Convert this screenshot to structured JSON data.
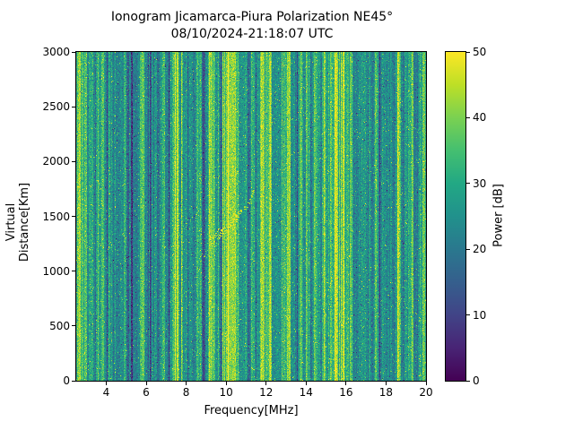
{
  "figure": {
    "title_line1": "Ionogram Jicamarca-Piura Polarization NE45°",
    "title_line2": "08/10/2024-21:18:07 UTC",
    "background": "#ffffff",
    "text_color": "#000000"
  },
  "chart_data": {
    "type": "heatmap",
    "title": "Ionogram Jicamarca-Piura Polarization NE45°",
    "subtitle": "08/10/2024-21:18:07 UTC",
    "xlabel": "Frequency[MHz]",
    "ylabel": "Virtual Distance[Km]",
    "colorbar_label": "Power [dB]",
    "xlim": [
      2.5,
      20.0
    ],
    "ylim": [
      0,
      3000
    ],
    "clim": [
      0,
      50
    ],
    "x_ticks": [
      4,
      6,
      8,
      10,
      12,
      14,
      16,
      18,
      20
    ],
    "y_ticks": [
      0,
      500,
      1000,
      1500,
      2000,
      2500,
      3000
    ],
    "colorbar_ticks": [
      0,
      10,
      20,
      30,
      40,
      50
    ],
    "grid": false,
    "legend": "colorbar-right",
    "background_power_db": 29,
    "noise_spread_db": 11,
    "seed": 1337,
    "colormap": {
      "name": "viridis",
      "stops": [
        [
          0.0,
          "#440154"
        ],
        [
          0.1,
          "#482475"
        ],
        [
          0.2,
          "#414487"
        ],
        [
          0.3,
          "#355f8d"
        ],
        [
          0.4,
          "#2a788e"
        ],
        [
          0.5,
          "#21918c"
        ],
        [
          0.6,
          "#22a884"
        ],
        [
          0.7,
          "#44bf70"
        ],
        [
          0.8,
          "#7ad151"
        ],
        [
          0.9,
          "#bddf26"
        ],
        [
          1.0,
          "#fde725"
        ]
      ]
    },
    "interference_stripes": [
      {
        "f": 2.62,
        "width_mhz": 0.1,
        "delta_db": 12
      },
      {
        "f": 2.95,
        "width_mhz": 0.08,
        "delta_db": 8
      },
      {
        "f": 3.3,
        "width_mhz": 0.5,
        "delta_db": -5
      },
      {
        "f": 3.8,
        "width_mhz": 0.06,
        "delta_db": 6
      },
      {
        "f": 4.2,
        "width_mhz": 0.3,
        "delta_db": -4
      },
      {
        "f": 5.15,
        "width_mhz": 0.25,
        "delta_db": -4
      },
      {
        "f": 5.78,
        "width_mhz": 0.12,
        "delta_db": 15
      },
      {
        "f": 6.3,
        "width_mhz": 0.5,
        "delta_db": -6
      },
      {
        "f": 6.85,
        "width_mhz": 0.08,
        "delta_db": 8
      },
      {
        "f": 7.05,
        "width_mhz": 0.2,
        "delta_db": -4
      },
      {
        "f": 7.5,
        "width_mhz": 0.1,
        "delta_db": 10
      },
      {
        "f": 8.15,
        "width_mhz": 0.06,
        "delta_db": 7
      },
      {
        "f": 8.5,
        "width_mhz": 0.8,
        "delta_db": -6
      },
      {
        "f": 9.0,
        "width_mhz": 0.3,
        "delta_db": -4
      },
      {
        "f": 9.35,
        "width_mhz": 0.15,
        "delta_db": 12
      },
      {
        "f": 9.95,
        "width_mhz": 0.25,
        "delta_db": 14
      },
      {
        "f": 10.25,
        "width_mhz": 0.3,
        "delta_db": 13
      },
      {
        "f": 10.55,
        "width_mhz": 0.12,
        "delta_db": 10
      },
      {
        "f": 11.3,
        "width_mhz": 0.08,
        "delta_db": 8
      },
      {
        "f": 11.8,
        "width_mhz": 0.12,
        "delta_db": 13
      },
      {
        "f": 12.15,
        "width_mhz": 0.06,
        "delta_db": 7
      },
      {
        "f": 12.55,
        "width_mhz": 0.5,
        "delta_db": -6
      },
      {
        "f": 13.1,
        "width_mhz": 0.08,
        "delta_db": 9
      },
      {
        "f": 13.6,
        "width_mhz": 0.7,
        "delta_db": -5
      },
      {
        "f": 14.15,
        "width_mhz": 0.3,
        "delta_db": -4
      },
      {
        "f": 14.45,
        "width_mhz": 0.1,
        "delta_db": 10
      },
      {
        "f": 14.85,
        "width_mhz": 0.06,
        "delta_db": 7
      },
      {
        "f": 15.5,
        "width_mhz": 0.1,
        "delta_db": 14
      },
      {
        "f": 15.8,
        "width_mhz": 0.1,
        "delta_db": 14
      },
      {
        "f": 16.25,
        "width_mhz": 0.08,
        "delta_db": 9
      },
      {
        "f": 16.6,
        "width_mhz": 0.5,
        "delta_db": -5
      },
      {
        "f": 17.2,
        "width_mhz": 0.4,
        "delta_db": -4
      },
      {
        "f": 17.5,
        "width_mhz": 0.05,
        "delta_db": 6
      },
      {
        "f": 18.2,
        "width_mhz": 0.4,
        "delta_db": -5
      },
      {
        "f": 18.6,
        "width_mhz": 0.06,
        "delta_db": 7
      },
      {
        "f": 19.15,
        "width_mhz": 0.08,
        "delta_db": 8
      },
      {
        "f": 19.5,
        "width_mhz": 0.2,
        "delta_db": -4
      },
      {
        "f": 19.9,
        "width_mhz": 0.12,
        "delta_db": 13
      }
    ],
    "echo_trace": {
      "description": "F-region oblique echo trace rising from ~1050 km at 8.3 MHz to ~1760 km at 11.4 MHz, brightest between 9.2 and 10.6 MHz; faint secondary trace near 9.5 MHz at 2300-2650 km",
      "segments": [
        {
          "points": [
            [
              8.35,
              1060
            ],
            [
              8.7,
              1120
            ],
            [
              9.1,
              1200
            ],
            [
              9.4,
              1260
            ]
          ],
          "power_db": 45,
          "density": 0.5,
          "jitter_mhz": 0.12,
          "jitter_km": 45
        },
        {
          "points": [
            [
              9.2,
              1270
            ],
            [
              9.7,
              1360
            ],
            [
              10.2,
              1430
            ],
            [
              10.6,
              1520
            ]
          ],
          "power_db": 50,
          "density": 2.2,
          "jitter_mhz": 0.15,
          "jitter_km": 55
        },
        {
          "points": [
            [
              10.6,
              1520
            ],
            [
              11.0,
              1600
            ],
            [
              11.25,
              1680
            ],
            [
              11.4,
              1760
            ]
          ],
          "power_db": 47,
          "density": 1.0,
          "jitter_mhz": 0.06,
          "jitter_km": 25
        },
        {
          "points": [
            [
              9.35,
              2280
            ],
            [
              9.55,
              2450
            ],
            [
              9.7,
              2620
            ]
          ],
          "power_db": 40,
          "density": 0.35,
          "jitter_mhz": 0.05,
          "jitter_km": 30
        }
      ]
    }
  },
  "layout_labels": {
    "micro_stripe_count": 260
  }
}
